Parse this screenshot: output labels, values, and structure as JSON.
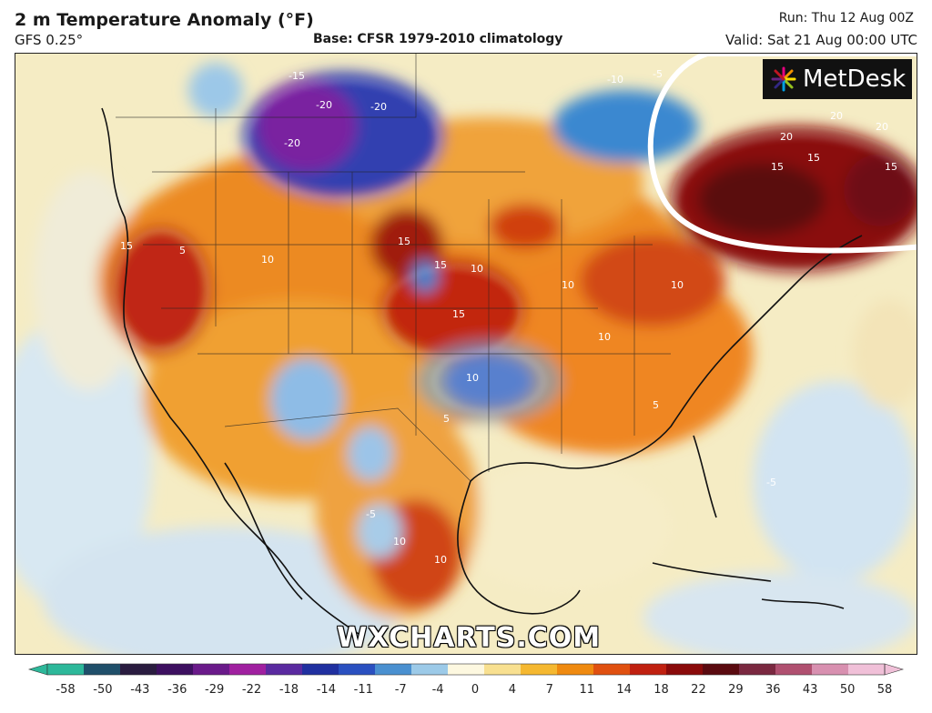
{
  "header": {
    "title": "2 m Temperature Anomaly (°F)",
    "model": "GFS 0.25°",
    "base": "Base: CFSR 1979-2010 climatology",
    "run": "Run: Thu 12 Aug 00Z",
    "valid": "Valid: Sat 21 Aug 00:00 UTC"
  },
  "branding": {
    "logo_text": "MetDesk",
    "watermark": "WXCHARTS.COM"
  },
  "colorbar": {
    "ticks": [
      "-58",
      "-50",
      "-43",
      "-36",
      "-29",
      "-22",
      "-18",
      "-14",
      "-11",
      "-7",
      "-4",
      "0",
      "4",
      "7",
      "11",
      "14",
      "18",
      "22",
      "29",
      "36",
      "43",
      "50",
      "58"
    ],
    "colors": [
      "#2db89a",
      "#1f4f6a",
      "#2a1c40",
      "#3d1060",
      "#6a1a8a",
      "#a020a0",
      "#5a2aa0",
      "#2030a0",
      "#2a50c0",
      "#4a90d0",
      "#9ccae8",
      "#fdf8e0",
      "#f8e090",
      "#f5b830",
      "#ef8a10",
      "#e05010",
      "#c02010",
      "#8a0a0a",
      "#5a0a10",
      "#7a2840",
      "#b05070",
      "#d890b0",
      "#f0c0d8"
    ]
  },
  "contour_labels": [
    "-20",
    "-15",
    "-10",
    "-5",
    "5",
    "10",
    "15",
    "20"
  ],
  "annotation": {
    "shape": "circle-outline",
    "color": "#ffffff",
    "region": "Northeast / eastern Canada"
  }
}
